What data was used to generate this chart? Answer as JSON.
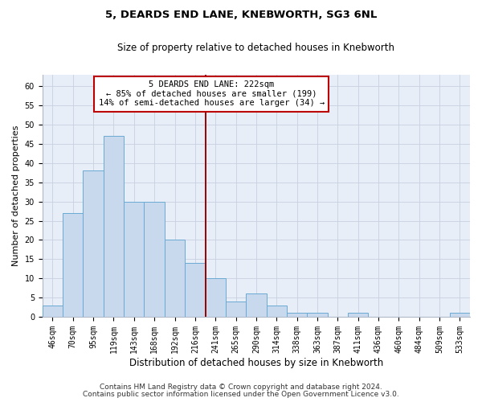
{
  "title": "5, DEARDS END LANE, KNEBWORTH, SG3 6NL",
  "subtitle": "Size of property relative to detached houses in Knebworth",
  "xlabel": "Distribution of detached houses by size in Knebworth",
  "ylabel": "Number of detached properties",
  "categories": [
    "46sqm",
    "70sqm",
    "95sqm",
    "119sqm",
    "143sqm",
    "168sqm",
    "192sqm",
    "216sqm",
    "241sqm",
    "265sqm",
    "290sqm",
    "314sqm",
    "338sqm",
    "363sqm",
    "387sqm",
    "411sqm",
    "436sqm",
    "460sqm",
    "484sqm",
    "509sqm",
    "533sqm"
  ],
  "values": [
    3,
    27,
    38,
    47,
    30,
    30,
    20,
    14,
    10,
    4,
    6,
    3,
    1,
    1,
    0,
    1,
    0,
    0,
    0,
    0,
    1
  ],
  "bar_color": "#c8d9ee",
  "bar_edge_color": "#6aaad4",
  "vline_x": 7.5,
  "vline_color": "#990000",
  "annotation_line1": "5 DEARDS END LANE: 222sqm",
  "annotation_line2": "← 85% of detached houses are smaller (199)",
  "annotation_line3": "14% of semi-detached houses are larger (34) →",
  "annotation_box_edgecolor": "#bb0000",
  "ylim_max": 63,
  "yticks": [
    0,
    5,
    10,
    15,
    20,
    25,
    30,
    35,
    40,
    45,
    50,
    55,
    60
  ],
  "grid_color": "#c8d0df",
  "axes_bg": "#e8eef8",
  "footer_line1": "Contains HM Land Registry data © Crown copyright and database right 2024.",
  "footer_line2": "Contains public sector information licensed under the Open Government Licence v3.0.",
  "title_fontsize": 9.5,
  "subtitle_fontsize": 8.5,
  "ylabel_fontsize": 8,
  "xlabel_fontsize": 8.5,
  "tick_fontsize": 7,
  "annot_fontsize": 7.5,
  "footer_fontsize": 6.5
}
